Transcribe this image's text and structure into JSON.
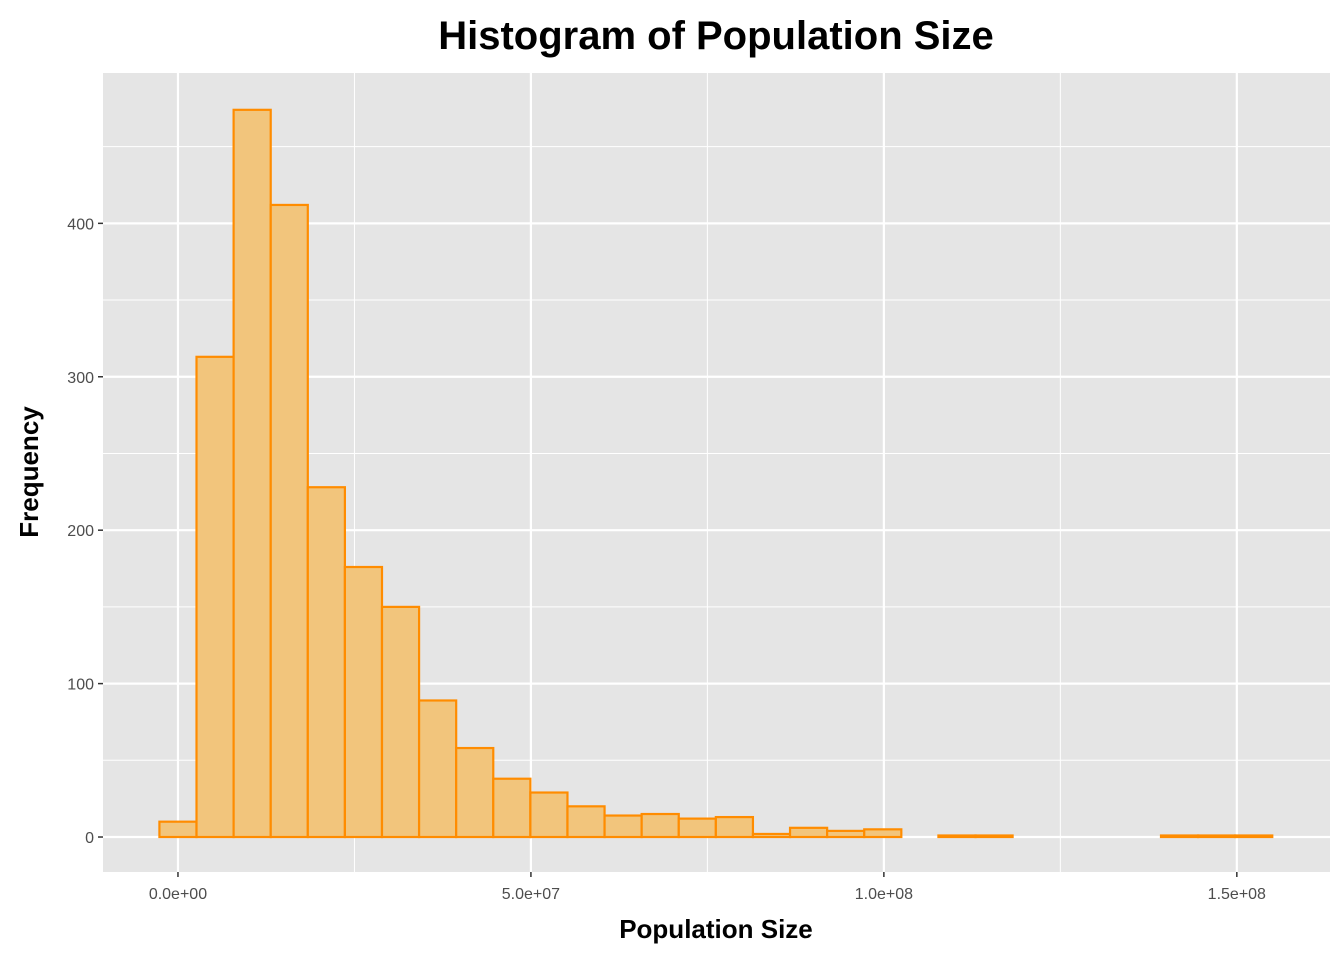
{
  "chart_data": {
    "type": "bar",
    "title": "Histogram of Population Size",
    "xlabel": "Population Size",
    "ylabel": "Frequency",
    "bin_width": 5255000,
    "first_bin_center": 0,
    "values": [
      10,
      313,
      474,
      412,
      228,
      176,
      150,
      89,
      58,
      38,
      29,
      20,
      14,
      15,
      12,
      13,
      2,
      6,
      4,
      5,
      0,
      1,
      1,
      0,
      0,
      0,
      0,
      1,
      1,
      1
    ],
    "xlim": [
      -10620000,
      163200000
    ],
    "ylim": [
      -22.8,
      498
    ],
    "x_ticks": [
      0,
      50000000,
      100000000,
      150000000
    ],
    "x_tick_labels": [
      "0.0e+00",
      "5.0e+07",
      "1.0e+08",
      "1.5e+08"
    ],
    "y_ticks": [
      0,
      100,
      200,
      300,
      400
    ],
    "y_tick_labels": [
      "0",
      "100",
      "200",
      "300",
      "400"
    ],
    "grid": true,
    "colors": {
      "panel": "#e5e5e5",
      "grid": "#ffffff",
      "fill": "#f2c57c",
      "stroke": "#ff8c00"
    }
  }
}
